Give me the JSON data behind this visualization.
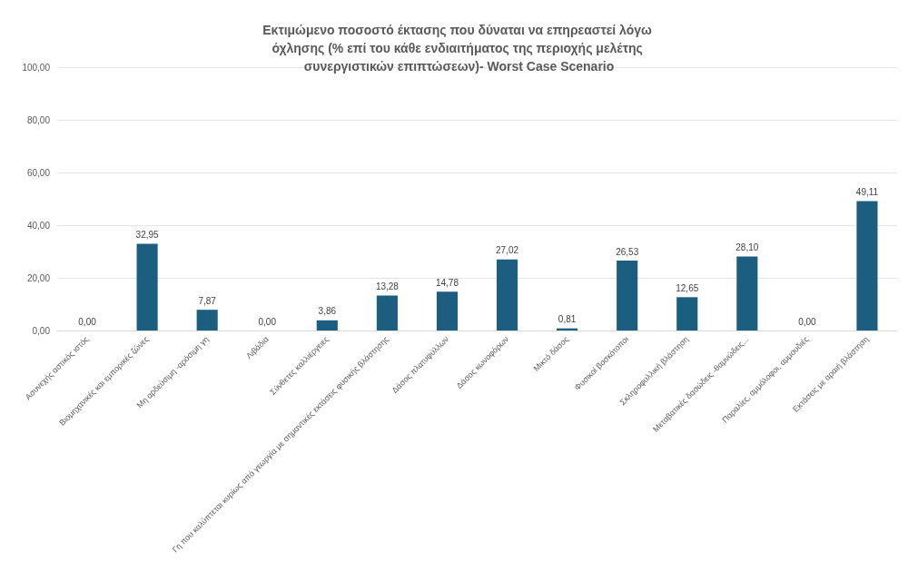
{
  "chart_data": {
    "type": "bar",
    "title": "Εκτιμώμενο ποσοστό έκτασης που δύναται να επηρεαστεί λόγω όχλησης (% επί του κάθε ενδιαιτήματος της περιοχής μελέτης συνεργιστικών επιπτώσεων)- Worst Case Scenario",
    "categories": [
      "Ασυνεχής αστικός ιστός",
      "Βιομηχανικές και εμπορικές ζώνες",
      "Μη αρδεύσιμη -αρόσιμη γη",
      "Λιβάδια",
      "Σύνθετες καλλιέργειες",
      "Γη που καλύπτεται κυρίως από γεωργία με σημαντικές εκτάσεις φυσικής βλάστησης",
      "Δάσος πλατυφύλλων",
      "Δάσος κωνοφόρων",
      "Μικτό δάσος",
      "Φυσικοί βοσκότοποι",
      "Σκληροφυλλική βλάστηση",
      "Μεταβατικές δασώδεις -θαμνώδεις...",
      "Παραλίες, αμμόλοφοι, αμμουδιές",
      "Εκτάσεις με αραιή βλάστηση"
    ],
    "values": [
      0,
      32.95,
      7.87,
      0,
      3.86,
      13.28,
      14.78,
      27.02,
      0.81,
      26.53,
      12.65,
      28.1,
      0,
      49.11
    ],
    "value_labels": [
      "0,00",
      "32,95",
      "7,87",
      "0,00",
      "3,86",
      "13,28",
      "14,78",
      "27,02",
      "0,81",
      "26,53",
      "12,65",
      "28,10",
      "0,00",
      "49,11"
    ],
    "color": "#1b5e80",
    "ylim": [
      0,
      100
    ],
    "yticks": [
      {
        "value": 0,
        "label": "0,00"
      },
      {
        "value": 20,
        "label": "20,00"
      },
      {
        "value": 40,
        "label": "40,00"
      },
      {
        "value": 60,
        "label": "60,00"
      },
      {
        "value": 80,
        "label": "80,00"
      },
      {
        "value": 100,
        "label": "100,00"
      }
    ],
    "grid": "y"
  }
}
